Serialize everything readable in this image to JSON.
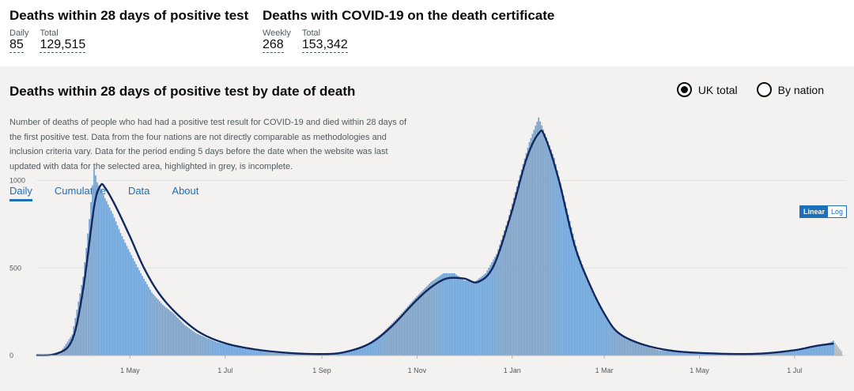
{
  "summaries": [
    {
      "title": "Deaths within 28 days of positive test",
      "metrics": [
        {
          "label": "Daily",
          "value": "85"
        },
        {
          "label": "Total",
          "value": "129,515"
        }
      ]
    },
    {
      "title": "Deaths with COVID-19 on the death certificate",
      "metrics": [
        {
          "label": "Weekly",
          "value": "268"
        },
        {
          "label": "Total",
          "value": "153,342"
        }
      ]
    }
  ],
  "card": {
    "title": "Deaths within 28 days of positive test by date of death",
    "radios": [
      {
        "label": "UK total",
        "selected": true
      },
      {
        "label": "By nation",
        "selected": false
      }
    ],
    "description": "Number of deaths of people who had had a positive test result for COVID-19 and died within 28 days of the first positive test. Data from the four nations are not directly comparable as methodologies and inclusion criteria vary. Data for the period ending 5 days before the date when the website was last updated with data for the selected area, highlighted in grey, is incomplete.",
    "tabs": [
      {
        "label": "Daily",
        "active": true
      },
      {
        "label": "Cumulative",
        "active": false
      },
      {
        "label": "Data",
        "active": false
      },
      {
        "label": "About",
        "active": false
      }
    ],
    "scale": {
      "linear": "Linear",
      "log": "Log",
      "active": "linear"
    }
  },
  "chart_data": {
    "type": "bar",
    "x_axis": {
      "type": "date",
      "range": [
        "2020-03-02",
        "2021-07-31"
      ],
      "tick_labels": [
        {
          "date": "2020-05-01",
          "label": "1 May"
        },
        {
          "date": "2020-07-01",
          "label": "1 Jul"
        },
        {
          "date": "2020-09-01",
          "label": "1 Sep"
        },
        {
          "date": "2020-11-01",
          "label": "1 Nov"
        },
        {
          "date": "2021-01-01",
          "label": "1 Jan"
        },
        {
          "date": "2021-03-01",
          "label": "1 Mar"
        },
        {
          "date": "2021-05-01",
          "label": "1 May"
        },
        {
          "date": "2021-07-01",
          "label": "1 Jul"
        }
      ]
    },
    "y_axis": {
      "ylim": [
        0,
        1400
      ],
      "ticks": [
        0,
        500,
        1000
      ]
    },
    "grid": true,
    "colors": {
      "bars": "#6e9fd1",
      "incomplete_bars": "#b1b4b6",
      "average_line": "#12295f"
    },
    "incomplete_days": 5,
    "series": [
      {
        "kind": "bars",
        "frequency": "daily",
        "interpolation": "linear between anchor dates",
        "anchors": [
          [
            "2020-03-02",
            2
          ],
          [
            "2020-03-10",
            5
          ],
          [
            "2020-03-18",
            25
          ],
          [
            "2020-03-25",
            120
          ],
          [
            "2020-04-01",
            450
          ],
          [
            "2020-04-05",
            780
          ],
          [
            "2020-04-08",
            1070
          ],
          [
            "2020-04-10",
            990
          ],
          [
            "2020-04-15",
            900
          ],
          [
            "2020-04-20",
            810
          ],
          [
            "2020-04-25",
            700
          ],
          [
            "2020-05-01",
            590
          ],
          [
            "2020-05-08",
            470
          ],
          [
            "2020-05-15",
            360
          ],
          [
            "2020-05-22",
            290
          ],
          [
            "2020-05-29",
            240
          ],
          [
            "2020-06-05",
            175
          ],
          [
            "2020-06-12",
            130
          ],
          [
            "2020-06-19",
            100
          ],
          [
            "2020-06-26",
            75
          ],
          [
            "2020-07-03",
            60
          ],
          [
            "2020-07-15",
            38
          ],
          [
            "2020-08-01",
            15
          ],
          [
            "2020-08-20",
            8
          ],
          [
            "2020-09-01",
            6
          ],
          [
            "2020-09-10",
            12
          ],
          [
            "2020-09-20",
            30
          ],
          [
            "2020-10-01",
            70
          ],
          [
            "2020-10-10",
            130
          ],
          [
            "2020-10-20",
            220
          ],
          [
            "2020-10-31",
            330
          ],
          [
            "2020-11-10",
            420
          ],
          [
            "2020-11-18",
            470
          ],
          [
            "2020-11-25",
            470
          ],
          [
            "2020-12-01",
            430
          ],
          [
            "2020-12-08",
            420
          ],
          [
            "2020-12-15",
            470
          ],
          [
            "2020-12-22",
            580
          ],
          [
            "2020-12-29",
            770
          ],
          [
            "2021-01-05",
            1000
          ],
          [
            "2021-01-12",
            1220
          ],
          [
            "2021-01-18",
            1360
          ],
          [
            "2021-01-22",
            1270
          ],
          [
            "2021-01-28",
            1130
          ],
          [
            "2021-02-05",
            840
          ],
          [
            "2021-02-12",
            590
          ],
          [
            "2021-02-20",
            400
          ],
          [
            "2021-02-28",
            260
          ],
          [
            "2021-03-07",
            150
          ],
          [
            "2021-03-15",
            95
          ],
          [
            "2021-03-25",
            60
          ],
          [
            "2021-04-05",
            30
          ],
          [
            "2021-04-20",
            18
          ],
          [
            "2021-05-05",
            10
          ],
          [
            "2021-05-25",
            7
          ],
          [
            "2021-06-10",
            10
          ],
          [
            "2021-06-25",
            18
          ],
          [
            "2021-07-05",
            30
          ],
          [
            "2021-07-15",
            50
          ],
          [
            "2021-07-24",
            75
          ],
          [
            "2021-07-26",
            85
          ],
          [
            "2021-07-28",
            60
          ],
          [
            "2021-07-31",
            25
          ]
        ]
      },
      {
        "kind": "line",
        "name": "7-day average",
        "points": [
          [
            "2020-03-02",
            1
          ],
          [
            "2020-03-15",
            10
          ],
          [
            "2020-03-25",
            90
          ],
          [
            "2020-04-01",
            380
          ],
          [
            "2020-04-08",
            850
          ],
          [
            "2020-04-12",
            970
          ],
          [
            "2020-04-15",
            960
          ],
          [
            "2020-04-22",
            850
          ],
          [
            "2020-05-01",
            680
          ],
          [
            "2020-05-10",
            500
          ],
          [
            "2020-05-20",
            350
          ],
          [
            "2020-06-01",
            230
          ],
          [
            "2020-06-15",
            130
          ],
          [
            "2020-07-01",
            70
          ],
          [
            "2020-07-20",
            35
          ],
          [
            "2020-08-10",
            15
          ],
          [
            "2020-09-01",
            8
          ],
          [
            "2020-09-15",
            18
          ],
          [
            "2020-10-01",
            65
          ],
          [
            "2020-10-15",
            160
          ],
          [
            "2020-10-31",
            310
          ],
          [
            "2020-11-10",
            390
          ],
          [
            "2020-11-20",
            440
          ],
          [
            "2020-12-01",
            440
          ],
          [
            "2020-12-10",
            420
          ],
          [
            "2020-12-20",
            510
          ],
          [
            "2020-12-31",
            800
          ],
          [
            "2021-01-10",
            1120
          ],
          [
            "2021-01-18",
            1270
          ],
          [
            "2021-01-22",
            1250
          ],
          [
            "2021-01-31",
            1000
          ],
          [
            "2021-02-10",
            630
          ],
          [
            "2021-02-20",
            400
          ],
          [
            "2021-03-01",
            240
          ],
          [
            "2021-03-10",
            130
          ],
          [
            "2021-03-25",
            65
          ],
          [
            "2021-04-15",
            25
          ],
          [
            "2021-05-15",
            10
          ],
          [
            "2021-06-10",
            11
          ],
          [
            "2021-07-01",
            30
          ],
          [
            "2021-07-15",
            55
          ],
          [
            "2021-07-26",
            68
          ]
        ]
      }
    ]
  }
}
